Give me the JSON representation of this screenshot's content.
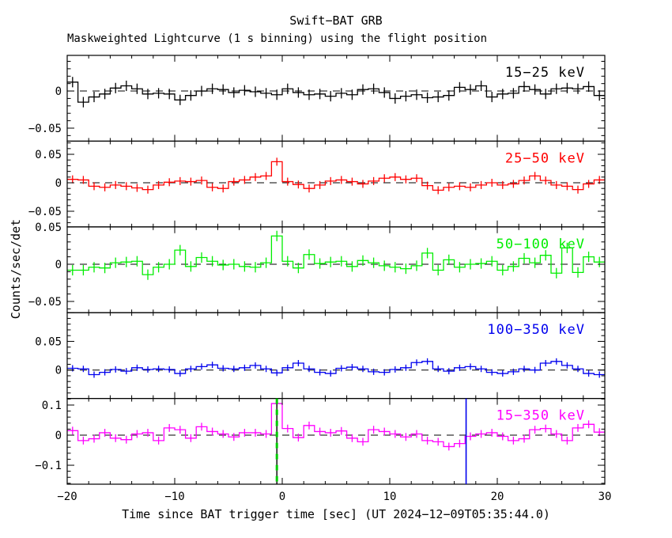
{
  "header": {
    "title": "Swift−BAT GRB",
    "subtitle": "Maskweighted Lightcurve (1 s binning) using the flight position"
  },
  "x_axis": {
    "label": "Time since BAT trigger time [sec] (UT 2024−12−09T05:35:44.0)",
    "min": -20,
    "max": 30,
    "major_ticks": [
      -20,
      -10,
      0,
      10,
      20,
      30
    ],
    "tick_labels": [
      "−20",
      "−10",
      "0",
      "10",
      "20",
      "30"
    ],
    "minor_step": 2
  },
  "y_axis": {
    "label": "Counts/sec/det"
  },
  "chart_data": {
    "type": "line",
    "style": "step-histogram with vertical error bars, dashed zero line per panel",
    "binning_sec": 1,
    "bin_start": -20,
    "bin_width": 1,
    "panels": [
      {
        "name": "15-25-keV",
        "label": "15−25 keV",
        "color": "#000000",
        "y_range": [
          -0.0675,
          0.048
        ],
        "y_major_step": 0.05,
        "y_minor_step": 0.01,
        "y_tick_labels": [
          {
            "value": 0,
            "label": "0"
          },
          {
            "value": -0.05,
            "label": "−0.05"
          }
        ],
        "typical_error": 0.007,
        "values": [
          0.012,
          -0.015,
          -0.008,
          -0.004,
          0.004,
          0.007,
          0.003,
          -0.004,
          -0.003,
          -0.004,
          -0.012,
          -0.006,
          0.0,
          0.003,
          0.002,
          -0.002,
          0.001,
          -0.001,
          -0.003,
          -0.005,
          0.003,
          -0.002,
          -0.005,
          -0.004,
          -0.007,
          -0.003,
          -0.005,
          0.002,
          0.003,
          -0.002,
          -0.01,
          -0.007,
          -0.005,
          -0.009,
          -0.008,
          -0.006,
          0.005,
          0.002,
          0.007,
          -0.008,
          -0.004,
          -0.003,
          0.006,
          0.002,
          -0.004,
          0.003,
          0.004,
          0.003,
          0.006,
          -0.006
        ]
      },
      {
        "name": "25-50-keV",
        "label": "25−50 keV",
        "color": "#ff0000",
        "y_range": [
          -0.0775,
          0.0731
        ],
        "y_major_step": 0.05,
        "y_minor_step": 0.01,
        "y_tick_labels": [
          {
            "value": 0.05,
            "label": "0.05"
          },
          {
            "value": 0,
            "label": "0"
          },
          {
            "value": -0.05,
            "label": "−0.05"
          }
        ],
        "typical_error": 0.007,
        "values": [
          0.006,
          0.005,
          -0.006,
          -0.008,
          -0.004,
          -0.006,
          -0.009,
          -0.012,
          -0.004,
          0.001,
          0.003,
          0.002,
          0.004,
          -0.008,
          -0.01,
          0.002,
          0.005,
          0.01,
          0.012,
          0.037,
          0.002,
          -0.003,
          -0.01,
          -0.004,
          0.003,
          0.005,
          0.002,
          -0.002,
          0.003,
          0.008,
          0.01,
          0.006,
          0.008,
          -0.005,
          -0.013,
          -0.008,
          -0.006,
          -0.008,
          -0.004,
          0.0,
          -0.004,
          -0.002,
          0.004,
          0.012,
          0.004,
          -0.004,
          -0.006,
          -0.012,
          -0.002,
          0.005
        ]
      },
      {
        "name": "50-100-keV",
        "label": "50−100 keV",
        "color": "#00ee00",
        "y_range": [
          -0.0651,
          0.0502
        ],
        "y_major_step": 0.05,
        "y_minor_step": 0.01,
        "y_tick_labels": [
          {
            "value": 0.05,
            "label": "0.05"
          },
          {
            "value": 0,
            "label": "0"
          },
          {
            "value": -0.05,
            "label": "−0.05"
          }
        ],
        "typical_error": 0.007,
        "values": [
          -0.008,
          -0.008,
          -0.004,
          -0.005,
          0.002,
          0.003,
          0.004,
          -0.014,
          -0.004,
          0.0,
          0.019,
          -0.003,
          0.009,
          0.004,
          -0.001,
          0.0,
          -0.003,
          -0.004,
          0.002,
          0.038,
          0.004,
          -0.005,
          0.013,
          0.001,
          0.003,
          0.004,
          -0.003,
          0.005,
          0.002,
          -0.002,
          -0.004,
          -0.006,
          -0.002,
          0.015,
          -0.008,
          0.006,
          -0.004,
          0.0,
          0.001,
          0.004,
          -0.008,
          -0.003,
          0.008,
          0.002,
          0.012,
          -0.012,
          0.022,
          -0.011,
          0.01,
          0.003
        ]
      },
      {
        "name": "100-350-keV",
        "label": "100−350 keV",
        "color": "#0000ee",
        "y_range": [
          -0.0495,
          0.1
        ],
        "y_major_step": 0.05,
        "y_minor_step": 0.01,
        "y_tick_labels": [
          {
            "value": 0.05,
            "label": "0.05"
          },
          {
            "value": 0,
            "label": "0"
          }
        ],
        "typical_error": 0.0055,
        "values": [
          0.003,
          0.002,
          -0.008,
          -0.004,
          0.001,
          -0.002,
          0.004,
          0.001,
          0.002,
          0.001,
          -0.006,
          0.002,
          0.006,
          0.009,
          0.003,
          0.002,
          0.004,
          0.008,
          0.002,
          -0.005,
          0.004,
          0.012,
          0.002,
          -0.004,
          -0.006,
          0.003,
          0.005,
          0.002,
          -0.003,
          -0.004,
          0.001,
          0.004,
          0.013,
          0.015,
          0.002,
          -0.002,
          0.004,
          0.006,
          0.002,
          -0.004,
          -0.006,
          -0.003,
          0.002,
          0.0,
          0.012,
          0.015,
          0.008,
          0.002,
          -0.006,
          -0.008
        ]
      },
      {
        "name": "15-350-keV",
        "label": "15−350 keV",
        "color": "#ff00ff",
        "y_range": [
          -0.163,
          0.122
        ],
        "y_major_step": 0.1,
        "y_minor_step": 0.02,
        "y_tick_labels": [
          {
            "value": 0.1,
            "label": "0.1"
          },
          {
            "value": 0,
            "label": "0"
          },
          {
            "value": -0.1,
            "label": "−0.1"
          }
        ],
        "typical_error": 0.013,
        "values": [
          0.015,
          -0.018,
          -0.012,
          0.008,
          -0.01,
          -0.015,
          0.004,
          0.008,
          -0.018,
          0.024,
          0.018,
          -0.01,
          0.028,
          0.012,
          0.004,
          -0.006,
          0.008,
          0.008,
          0.004,
          0.105,
          0.022,
          -0.008,
          0.032,
          0.012,
          0.008,
          0.014,
          -0.01,
          -0.022,
          0.018,
          0.012,
          0.004,
          -0.006,
          0.004,
          -0.018,
          -0.022,
          -0.038,
          -0.028,
          -0.004,
          0.004,
          0.008,
          -0.004,
          -0.018,
          -0.012,
          0.018,
          0.022,
          0.004,
          -0.018,
          0.024,
          0.036,
          0.01
        ]
      }
    ],
    "vlines": [
      {
        "t": -0.5,
        "style": "dashed",
        "color": "#00cc00",
        "secondary_color": "#000000",
        "panel_index": 4,
        "name": "trigger-time-line"
      },
      {
        "t": 17.1,
        "style": "solid",
        "color": "#0000ee",
        "panel_index": 4,
        "name": "blue-marker-line"
      }
    ]
  }
}
